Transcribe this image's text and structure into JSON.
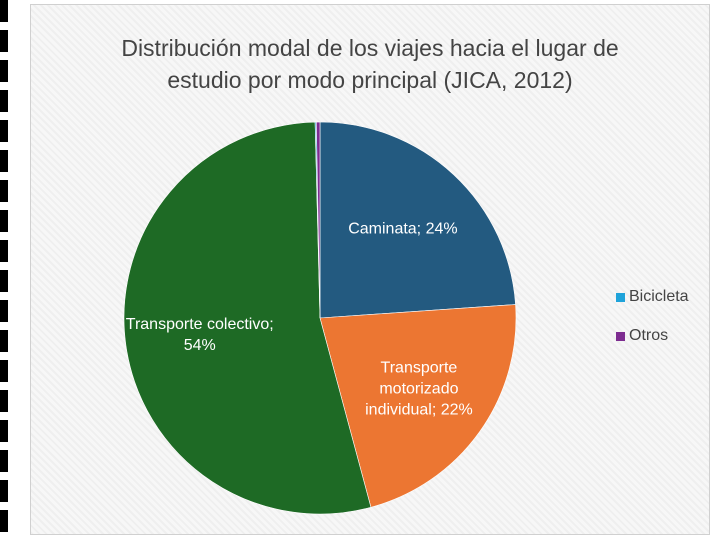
{
  "chart_data": {
    "type": "pie",
    "title": "Distribución modal de los viajes hacia el lugar de estudio por modo principal (JICA, 2012)",
    "categories": [
      "Caminata",
      "Transporte motorizado individual",
      "Transporte colectivo",
      "Bicicleta",
      "Otros"
    ],
    "values": [
      24,
      22,
      54,
      0.1,
      0.3
    ],
    "value_labels": [
      "Caminata; 24%",
      "Transporte motorizado individual; 22%",
      "Transporte colectivo; 54%",
      null,
      null
    ],
    "colors": [
      "#235a80",
      "#ec7632",
      "#1e6a25",
      "#1fa3da",
      "#7d2c90"
    ],
    "legend_categories": [
      3,
      4
    ],
    "legend": "right"
  }
}
